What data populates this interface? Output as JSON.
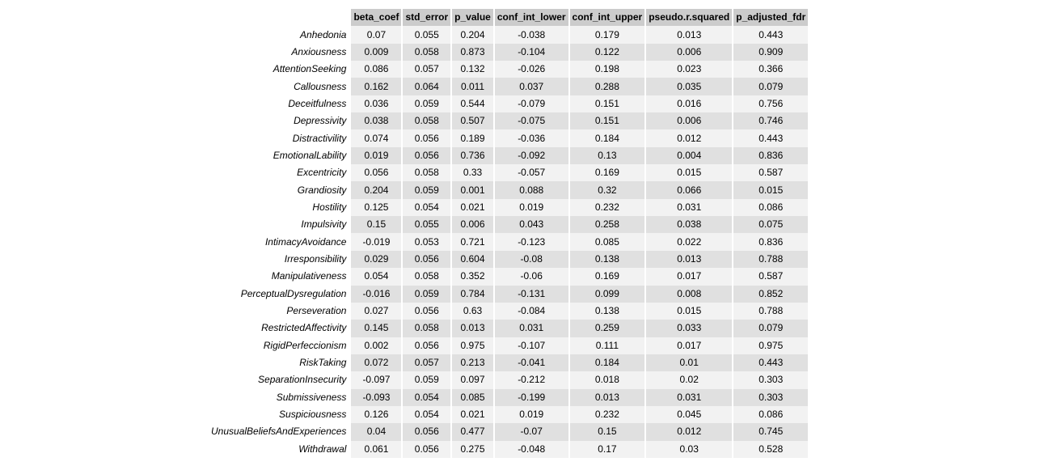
{
  "chart_data": {
    "type": "table",
    "columns": [
      "beta_coef",
      "std_error",
      "p_value",
      "conf_int_lower",
      "conf_int_upper",
      "pseudo.r.squared",
      "p_adjusted_fdr"
    ],
    "rows": [
      {
        "name": "Anhedonia",
        "values": [
          "0.07",
          "0.055",
          "0.204",
          "-0.038",
          "0.179",
          "0.013",
          "0.443"
        ]
      },
      {
        "name": "Anxiousness",
        "values": [
          "0.009",
          "0.058",
          "0.873",
          "-0.104",
          "0.122",
          "0.006",
          "0.909"
        ]
      },
      {
        "name": "AttentionSeeking",
        "values": [
          "0.086",
          "0.057",
          "0.132",
          "-0.026",
          "0.198",
          "0.023",
          "0.366"
        ]
      },
      {
        "name": "Callousness",
        "values": [
          "0.162",
          "0.064",
          "0.011",
          "0.037",
          "0.288",
          "0.035",
          "0.079"
        ]
      },
      {
        "name": "Deceitfulness",
        "values": [
          "0.036",
          "0.059",
          "0.544",
          "-0.079",
          "0.151",
          "0.016",
          "0.756"
        ]
      },
      {
        "name": "Depressivity",
        "values": [
          "0.038",
          "0.058",
          "0.507",
          "-0.075",
          "0.151",
          "0.006",
          "0.746"
        ]
      },
      {
        "name": "Distractivility",
        "values": [
          "0.074",
          "0.056",
          "0.189",
          "-0.036",
          "0.184",
          "0.012",
          "0.443"
        ]
      },
      {
        "name": "EmotionalLability",
        "values": [
          "0.019",
          "0.056",
          "0.736",
          "-0.092",
          "0.13",
          "0.004",
          "0.836"
        ]
      },
      {
        "name": "Excentricity",
        "values": [
          "0.056",
          "0.058",
          "0.33",
          "-0.057",
          "0.169",
          "0.015",
          "0.587"
        ]
      },
      {
        "name": "Grandiosity",
        "values": [
          "0.204",
          "0.059",
          "0.001",
          "0.088",
          "0.32",
          "0.066",
          "0.015"
        ]
      },
      {
        "name": "Hostility",
        "values": [
          "0.125",
          "0.054",
          "0.021",
          "0.019",
          "0.232",
          "0.031",
          "0.086"
        ]
      },
      {
        "name": "Impulsivity",
        "values": [
          "0.15",
          "0.055",
          "0.006",
          "0.043",
          "0.258",
          "0.038",
          "0.075"
        ]
      },
      {
        "name": "IntimacyAvoidance",
        "values": [
          "-0.019",
          "0.053",
          "0.721",
          "-0.123",
          "0.085",
          "0.022",
          "0.836"
        ]
      },
      {
        "name": "Irresponsibility",
        "values": [
          "0.029",
          "0.056",
          "0.604",
          "-0.08",
          "0.138",
          "0.013",
          "0.788"
        ]
      },
      {
        "name": "Manipulativeness",
        "values": [
          "0.054",
          "0.058",
          "0.352",
          "-0.06",
          "0.169",
          "0.017",
          "0.587"
        ]
      },
      {
        "name": "PerceptualDysregulation",
        "values": [
          "-0.016",
          "0.059",
          "0.784",
          "-0.131",
          "0.099",
          "0.008",
          "0.852"
        ]
      },
      {
        "name": "Perseveration",
        "values": [
          "0.027",
          "0.056",
          "0.63",
          "-0.084",
          "0.138",
          "0.015",
          "0.788"
        ]
      },
      {
        "name": "RestrictedAffectivity",
        "values": [
          "0.145",
          "0.058",
          "0.013",
          "0.031",
          "0.259",
          "0.033",
          "0.079"
        ]
      },
      {
        "name": "RigidPerfeccionism",
        "values": [
          "0.002",
          "0.056",
          "0.975",
          "-0.107",
          "0.111",
          "0.017",
          "0.975"
        ]
      },
      {
        "name": "RiskTaking",
        "values": [
          "0.072",
          "0.057",
          "0.213",
          "-0.041",
          "0.184",
          "0.01",
          "0.443"
        ]
      },
      {
        "name": "SeparationInsecurity",
        "values": [
          "-0.097",
          "0.059",
          "0.097",
          "-0.212",
          "0.018",
          "0.02",
          "0.303"
        ]
      },
      {
        "name": "Submissiveness",
        "values": [
          "-0.093",
          "0.054",
          "0.085",
          "-0.199",
          "0.013",
          "0.031",
          "0.303"
        ]
      },
      {
        "name": "Suspiciousness",
        "values": [
          "0.126",
          "0.054",
          "0.021",
          "0.019",
          "0.232",
          "0.045",
          "0.086"
        ]
      },
      {
        "name": "UnusualBeliefsAndExperiences",
        "values": [
          "0.04",
          "0.056",
          "0.477",
          "-0.07",
          "0.15",
          "0.012",
          "0.745"
        ]
      },
      {
        "name": "Withdrawal",
        "values": [
          "0.061",
          "0.056",
          "0.275",
          "-0.048",
          "0.17",
          "0.03",
          "0.528"
        ]
      }
    ]
  }
}
